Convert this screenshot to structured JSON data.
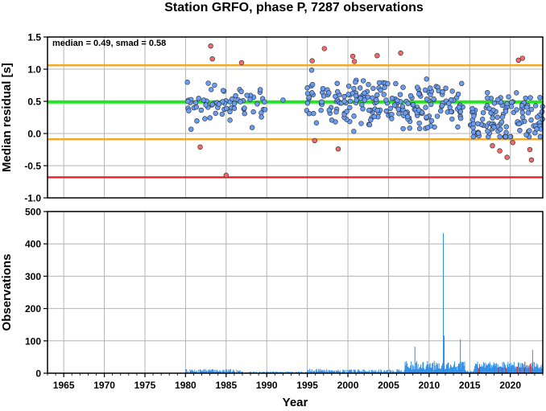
{
  "title": "Station GRFO, phase P, 7287 observations",
  "colors": {
    "median_line": "#22e622",
    "smad_lines": "#f5a623",
    "limit_line": "#e02020",
    "point_normal": "#6a9ef5",
    "point_outlier": "#f26a6a",
    "bar_normal": "#2e8fe8",
    "bar_outlier": "#e02020",
    "grid": "#b4b4b4"
  },
  "chart_data": [
    {
      "type": "scatter",
      "ylabel": "Median residual [s]",
      "xlim": [
        1963,
        2024
      ],
      "ylim": [
        -1.0,
        1.5
      ],
      "yticks": [
        "1.5",
        "1.0",
        "0.5",
        "0.0",
        "-0.5",
        "-1.0"
      ],
      "annotation": "median = 0.49, smad = 0.58",
      "hlines": [
        {
          "y": 1.06,
          "role": "smad_lines"
        },
        {
          "y": 0.49,
          "role": "median_line"
        },
        {
          "y": -0.09,
          "role": "smad_lines"
        },
        {
          "y": -0.68,
          "role": "limit_line"
        }
      ],
      "outliers": [
        [
          1981.8,
          -0.21
        ],
        [
          1983.1,
          1.36
        ],
        [
          1983.3,
          1.16
        ],
        [
          1985.0,
          -0.65
        ],
        [
          1986.9,
          1.1
        ],
        [
          1995.6,
          1.13
        ],
        [
          1995.9,
          -0.11
        ],
        [
          1997.1,
          1.32
        ],
        [
          1998.8,
          -0.24
        ],
        [
          2000.6,
          1.2
        ],
        [
          2000.8,
          1.12
        ],
        [
          2003.6,
          1.21
        ],
        [
          2006.5,
          1.25
        ],
        [
          2017.8,
          -0.19
        ],
        [
          2018.7,
          -0.27
        ],
        [
          2019.6,
          -0.37
        ],
        [
          2020.3,
          -0.14
        ],
        [
          2021.0,
          1.14
        ],
        [
          2021.5,
          1.17
        ],
        [
          2022.4,
          -0.25
        ],
        [
          2022.6,
          -0.41
        ]
      ],
      "points_seed": 11
    },
    {
      "type": "bar",
      "xlabel": "Year",
      "ylabel": "Observations",
      "xlim": [
        1963,
        2024
      ],
      "ylim": [
        0,
        500
      ],
      "yticks": [
        "500",
        "400",
        "300",
        "200",
        "100",
        "0"
      ],
      "xticks": [
        "1965",
        "1970",
        "1975",
        "1980",
        "1985",
        "1990",
        "1995",
        "2000",
        "2005",
        "2010",
        "2015",
        "2020"
      ],
      "highlights": [
        {
          "x": 2011.7,
          "value": 433
        },
        {
          "x": 2011.8,
          "value": 116
        },
        {
          "x": 2008.2,
          "value": 82
        },
        {
          "x": 2013.8,
          "value": 105
        },
        {
          "x": 2022.7,
          "value": 72
        },
        {
          "x": 2007.0,
          "value": 35
        }
      ],
      "bars_seed": 7
    }
  ]
}
